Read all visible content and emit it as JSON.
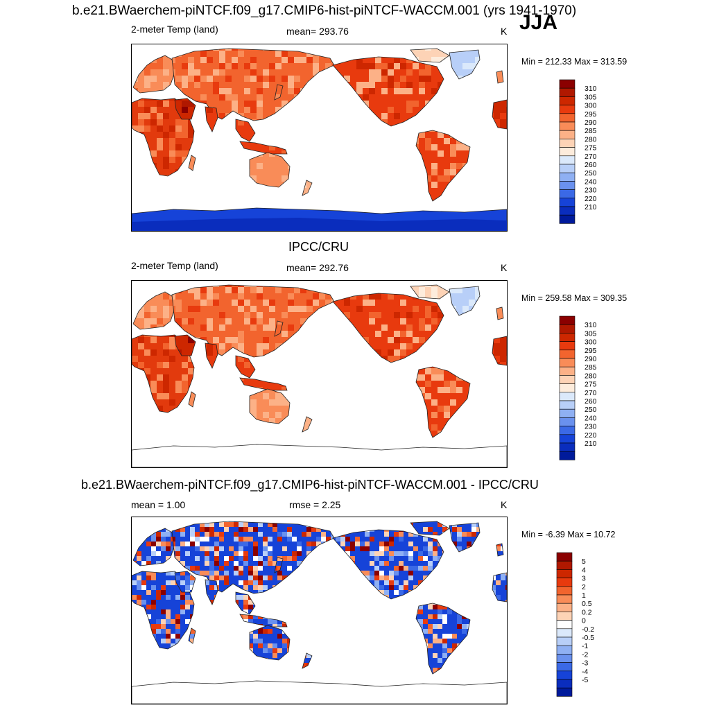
{
  "title": "b.e21.BWaerchem-piNTCF.f09_g17.CMIP6-hist-piNTCF-WACCM.001 (yrs 1941-1970)",
  "season": "JJA",
  "panels": [
    {
      "id": "model",
      "left_label": "2-meter Temp (land)",
      "center_label": "mean= 293.76",
      "units": "K",
      "minmax": "Min = 212.33 Max = 313.59",
      "antarctica": true,
      "scheme": "abs",
      "colorbar": {
        "labels": [
          "310",
          "305",
          "300",
          "295",
          "290",
          "285",
          "280",
          "275",
          "270",
          "260",
          "250",
          "240",
          "230",
          "220",
          "210"
        ],
        "colors": [
          "#8b0000",
          "#b01800",
          "#cd2700",
          "#e83a0e",
          "#f2642e",
          "#f98c58",
          "#fcb187",
          "#fdd3b6",
          "#fdecdc",
          "#dbe9fb",
          "#b8cff8",
          "#8fb0f3",
          "#6a91ee",
          "#3b69e6",
          "#1643d8",
          "#0a2dbd",
          "#001a9b"
        ]
      }
    },
    {
      "id": "obs",
      "heading": "IPCC/CRU",
      "left_label": "2-meter Temp (land)",
      "center_label": "mean= 292.76",
      "units": "K",
      "minmax": "Min = 259.58 Max = 309.35",
      "antarctica": false,
      "scheme": "abs",
      "colorbar": {
        "labels": [
          "310",
          "305",
          "300",
          "295",
          "290",
          "285",
          "280",
          "275",
          "270",
          "260",
          "250",
          "240",
          "230",
          "220",
          "210"
        ],
        "colors": [
          "#8b0000",
          "#b01800",
          "#cd2700",
          "#e83a0e",
          "#f2642e",
          "#f98c58",
          "#fcb187",
          "#fdd3b6",
          "#fdecdc",
          "#dbe9fb",
          "#b8cff8",
          "#8fb0f3",
          "#6a91ee",
          "#3b69e6",
          "#1643d8",
          "#0a2dbd",
          "#001a9b"
        ]
      }
    },
    {
      "id": "diff",
      "heading": "b.e21.BWaerchem-piNTCF.f09_g17.CMIP6-hist-piNTCF-WACCM.001 - IPCC/CRU",
      "left_label": "mean =   1.00",
      "center_label": "rmse =   2.25",
      "units": "K",
      "minmax": "Min =  -6.39 Max =  10.72",
      "antarctica": false,
      "scheme": "diff",
      "colorbar": {
        "labels": [
          "5",
          "4",
          "3",
          "2",
          "1",
          "0.5",
          "0.2",
          "0",
          "-0.2",
          "-0.5",
          "-1",
          "-2",
          "-3",
          "-4",
          "-5"
        ],
        "colors": [
          "#8b0000",
          "#b01800",
          "#cd2700",
          "#e83a0e",
          "#f2642e",
          "#f98c58",
          "#fcb187",
          "#fdd3b6",
          "#ffffff",
          "#dbe9fb",
          "#b8cff8",
          "#8fb0f3",
          "#6a91ee",
          "#3b69e6",
          "#1643d8",
          "#0a2dbd",
          "#001a9b"
        ]
      }
    }
  ]
}
